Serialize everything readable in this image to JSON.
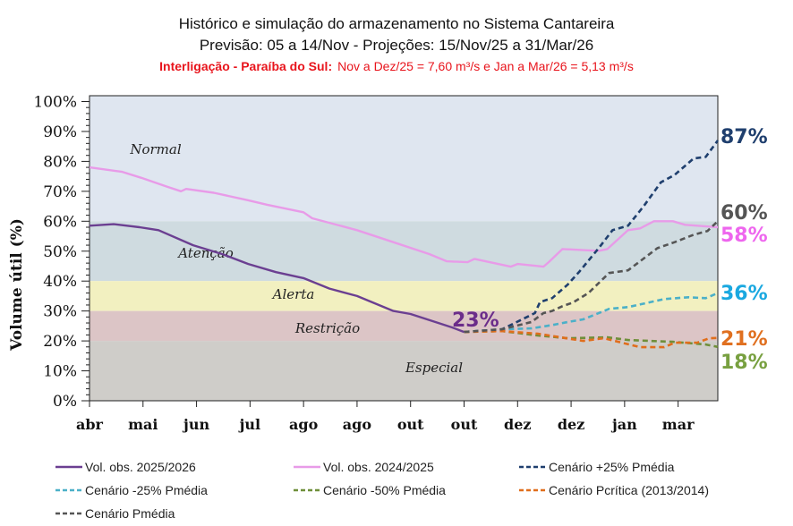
{
  "chart_data": {
    "type": "line",
    "title": "Histórico e simulação do armazenamento no Sistema Cantareira",
    "subtitle": "Previsão: 05 a 14/Nov  - Projeções: 15/Nov/25 a 31/Mar/26",
    "note_bold": "Interligação - Paraíba do Sul:",
    "note_text": "Nov a Dez/25 = 7,60 m³/s e Jan a Mar/26 = 5,13 m³/s",
    "ylabel": "Volume útil (%)",
    "xlabel": "",
    "ylim": [
      0,
      100
    ],
    "xlim": [
      "2025-04-01",
      "2026-03-31"
    ],
    "grid": false,
    "legend_placement": "bottom",
    "yticks": [
      "0%",
      "10%",
      "20%",
      "30%",
      "40%",
      "50%",
      "60%",
      "70%",
      "80%",
      "90%",
      "100%"
    ],
    "xticks": [
      {
        "date": "2025-04-01",
        "label": "abr"
      },
      {
        "date": "2025-05-02",
        "label": "mai"
      },
      {
        "date": "2025-06-02",
        "label": "jun"
      },
      {
        "date": "2025-07-03",
        "label": "jul"
      },
      {
        "date": "2025-08-03",
        "label": "ago"
      },
      {
        "date": "2025-09-03",
        "label": "ago"
      },
      {
        "date": "2025-10-04",
        "label": "out"
      },
      {
        "date": "2025-11-04",
        "label": "out"
      },
      {
        "date": "2025-12-05",
        "label": "dez"
      },
      {
        "date": "2026-01-05",
        "label": "dez"
      },
      {
        "date": "2026-02-05",
        "label": "jan"
      },
      {
        "date": "2026-03-08",
        "label": "mar"
      }
    ],
    "zones": [
      {
        "name": "Normal",
        "from": 60,
        "to": 100,
        "color": "#dfe6f0"
      },
      {
        "name": "Atenção",
        "from": 40,
        "to": 60,
        "color": "#cfdbe0"
      },
      {
        "name": "Alerta",
        "from": 30,
        "to": 40,
        "color": "#f2f0c0"
      },
      {
        "name": "Restrição",
        "from": 20,
        "to": 30,
        "color": "#dcc5c6"
      },
      {
        "name": "Especial",
        "from": 0,
        "to": 20,
        "color": "#cfcdc9"
      }
    ],
    "series": [
      {
        "name": "Vol. obs. 2025/2026",
        "color": "#6b3f91",
        "dash": false,
        "end_label": "23%",
        "points": [
          [
            "2025-04-01",
            58.5
          ],
          [
            "2025-04-15",
            59
          ],
          [
            "2025-04-30",
            58
          ],
          [
            "2025-05-11",
            57
          ],
          [
            "2025-05-31",
            52
          ],
          [
            "2025-06-17",
            49
          ],
          [
            "2025-07-02",
            45.7
          ],
          [
            "2025-07-18",
            43
          ],
          [
            "2025-08-03",
            41
          ],
          [
            "2025-08-18",
            37.5
          ],
          [
            "2025-09-03",
            35
          ],
          [
            "2025-09-24",
            30
          ],
          [
            "2025-10-04",
            29
          ],
          [
            "2025-10-20",
            26
          ],
          [
            "2025-10-28",
            24.5
          ],
          [
            "2025-11-04",
            23
          ]
        ]
      },
      {
        "name": "Vol. obs. 2024/2025",
        "color": "#e89be8",
        "dash": false,
        "end_label": "58%",
        "points": [
          [
            "2025-04-01",
            78
          ],
          [
            "2025-04-20",
            76.5
          ],
          [
            "2025-05-01",
            74.5
          ],
          [
            "2025-05-16",
            71.5
          ],
          [
            "2025-05-24",
            70
          ],
          [
            "2025-05-27",
            70.8
          ],
          [
            "2025-06-12",
            69.5
          ],
          [
            "2025-07-02",
            67
          ],
          [
            "2025-07-13",
            65.5
          ],
          [
            "2025-08-03",
            63
          ],
          [
            "2025-08-08",
            61
          ],
          [
            "2025-09-03",
            57
          ],
          [
            "2025-09-24",
            53
          ],
          [
            "2025-10-15",
            49
          ],
          [
            "2025-10-25",
            46.6
          ],
          [
            "2025-11-06",
            46.3
          ],
          [
            "2025-11-10",
            47.4
          ],
          [
            "2025-12-01",
            44.8
          ],
          [
            "2025-12-05",
            45.7
          ],
          [
            "2025-12-20",
            44.8
          ],
          [
            "2025-12-23",
            46.3
          ],
          [
            "2025-12-31",
            50.7
          ],
          [
            "2026-01-21",
            50.1
          ],
          [
            "2026-01-26",
            50.7
          ],
          [
            "2026-02-07",
            57
          ],
          [
            "2026-02-14",
            57.6
          ],
          [
            "2026-02-22",
            60
          ],
          [
            "2026-03-05",
            60
          ],
          [
            "2026-03-12",
            58.8
          ],
          [
            "2026-03-26",
            58.2
          ],
          [
            "2026-03-31",
            58
          ]
        ]
      },
      {
        "name": "Cenário +25% Pmédia",
        "color": "#1f3f6e",
        "dash": true,
        "end_label": "87%",
        "points": [
          [
            "2025-11-04",
            23
          ],
          [
            "2025-11-26",
            23.9
          ],
          [
            "2025-12-15",
            29.3
          ],
          [
            "2025-12-18",
            33
          ],
          [
            "2025-12-25",
            34.3
          ],
          [
            "2026-01-03",
            38.8
          ],
          [
            "2026-01-10",
            43.3
          ],
          [
            "2026-01-21",
            51
          ],
          [
            "2026-01-29",
            57
          ],
          [
            "2026-02-07",
            58.5
          ],
          [
            "2026-02-16",
            65
          ],
          [
            "2026-02-26",
            73
          ],
          [
            "2026-03-06",
            75.5
          ],
          [
            "2026-03-17",
            81
          ],
          [
            "2026-03-24",
            81.5
          ],
          [
            "2026-03-31",
            87
          ]
        ]
      },
      {
        "name": "Cenário -25% Pmédia",
        "color": "#4bb0c8",
        "dash": true,
        "end_label": "36%",
        "points": [
          [
            "2025-11-04",
            23
          ],
          [
            "2025-11-26",
            23.9
          ],
          [
            "2025-12-13",
            24.2
          ],
          [
            "2025-12-25",
            25.3
          ],
          [
            "2026-01-03",
            26.3
          ],
          [
            "2026-01-12",
            27.2
          ],
          [
            "2026-01-27",
            30.7
          ],
          [
            "2026-02-07",
            31.3
          ],
          [
            "2026-02-28",
            34
          ],
          [
            "2026-03-14",
            34.6
          ],
          [
            "2026-03-24",
            34.3
          ],
          [
            "2026-03-31",
            36
          ]
        ]
      },
      {
        "name": "Cenário -50% Pmédia",
        "color": "#6f8f3a",
        "dash": true,
        "end_label": "18%",
        "points": [
          [
            "2025-11-04",
            23
          ],
          [
            "2025-11-26",
            23.3
          ],
          [
            "2025-12-17",
            21.8
          ],
          [
            "2026-01-03",
            20.9
          ],
          [
            "2026-01-26",
            21.2
          ],
          [
            "2026-02-07",
            20.3
          ],
          [
            "2026-03-05",
            19.7
          ],
          [
            "2026-03-24",
            18.8
          ],
          [
            "2026-03-31",
            18
          ]
        ]
      },
      {
        "name": "Cenário Pcrítica (2013/2014)",
        "color": "#e06e1c",
        "dash": true,
        "end_label": "21%",
        "points": [
          [
            "2025-11-04",
            23
          ],
          [
            "2025-11-26",
            23.3
          ],
          [
            "2025-12-17",
            22.4
          ],
          [
            "2026-01-12",
            20
          ],
          [
            "2026-01-24",
            20.9
          ],
          [
            "2026-02-14",
            17.9
          ],
          [
            "2026-02-28",
            17.9
          ],
          [
            "2026-03-06",
            19.4
          ],
          [
            "2026-03-19",
            19.4
          ],
          [
            "2026-03-26",
            20.9
          ],
          [
            "2026-03-31",
            21
          ]
        ]
      },
      {
        "name": "Cenário Pmédia",
        "color": "#555555",
        "dash": true,
        "end_label": "60%",
        "points": [
          [
            "2025-11-04",
            23
          ],
          [
            "2025-11-26",
            23.9
          ],
          [
            "2025-12-13",
            26.3
          ],
          [
            "2025-12-20",
            29.3
          ],
          [
            "2025-12-25",
            30
          ],
          [
            "2025-12-31",
            31.6
          ],
          [
            "2026-01-06",
            32.8
          ],
          [
            "2026-01-15",
            36
          ],
          [
            "2026-01-27",
            42.7
          ],
          [
            "2026-02-07",
            43.6
          ],
          [
            "2026-02-24",
            51
          ],
          [
            "2026-03-06",
            53
          ],
          [
            "2026-03-17",
            55.5
          ],
          [
            "2026-03-25",
            56.7
          ],
          [
            "2026-03-31",
            60
          ]
        ]
      }
    ],
    "end_label_colors": {
      "87%": "#1f3f6e",
      "60%": "#555555",
      "58%": "#ee66ee",
      "36%": "#1aa8e0",
      "21%": "#e07020",
      "18%": "#78a040",
      "23%": "#6b2c8a"
    }
  }
}
